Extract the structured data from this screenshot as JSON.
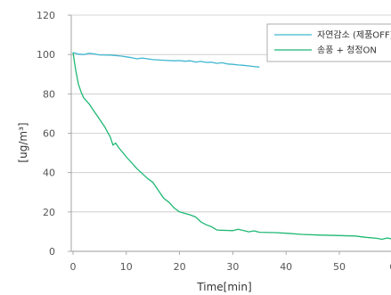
{
  "chart_data": {
    "type": "line",
    "xlabel": "Time[min]",
    "ylabel": "[ug/m³]",
    "xlim": [
      -5,
      60
    ],
    "ylim": [
      0,
      120
    ],
    "x_ticks": [
      "0",
      "10",
      "20",
      "30",
      "40",
      "50",
      "6"
    ],
    "y_ticks": [
      "0",
      "20",
      "40",
      "60",
      "80",
      "100",
      "120"
    ],
    "grid": "horizontal",
    "legend_position": "top-right",
    "series": [
      {
        "name": "자연감소 (제품OFF)",
        "color": "#3fb6d0",
        "points": [
          [
            0,
            101
          ],
          [
            1,
            100.2
          ],
          [
            2,
            100
          ],
          [
            3,
            100.6
          ],
          [
            4,
            100.3
          ],
          [
            5,
            99.8
          ],
          [
            7,
            99.7
          ],
          [
            9,
            99.2
          ],
          [
            10,
            98.8
          ],
          [
            11,
            98.4
          ],
          [
            12,
            97.8
          ],
          [
            13,
            98.2
          ],
          [
            15,
            97.4
          ],
          [
            17,
            97.1
          ],
          [
            19,
            96.8
          ],
          [
            20,
            96.9
          ],
          [
            21,
            96.6
          ],
          [
            22,
            96.8
          ],
          [
            23,
            96.2
          ],
          [
            24,
            96.5
          ],
          [
            25,
            96.0
          ],
          [
            26,
            96.1
          ],
          [
            27,
            95.5
          ],
          [
            28,
            95.8
          ],
          [
            29,
            95.2
          ],
          [
            30,
            95.0
          ],
          [
            31,
            94.7
          ],
          [
            32,
            94.5
          ],
          [
            33,
            94.2
          ],
          [
            34,
            93.9
          ],
          [
            35,
            93.6
          ]
        ]
      },
      {
        "name": "송풍 + 청정ON",
        "color": "#1eb873",
        "points": [
          [
            0,
            101
          ],
          [
            0.5,
            92
          ],
          [
            1,
            85
          ],
          [
            1.5,
            81
          ],
          [
            2,
            78
          ],
          [
            3,
            75
          ],
          [
            4,
            71
          ],
          [
            5,
            67
          ],
          [
            6,
            63
          ],
          [
            7,
            58
          ],
          [
            7.5,
            54
          ],
          [
            8,
            55
          ],
          [
            8.5,
            53
          ],
          [
            10,
            48
          ],
          [
            12,
            42
          ],
          [
            14,
            37
          ],
          [
            15,
            35
          ],
          [
            16,
            31
          ],
          [
            17,
            27
          ],
          [
            18,
            25
          ],
          [
            19,
            22
          ],
          [
            20,
            20
          ],
          [
            22,
            18.5
          ],
          [
            23,
            17.5
          ],
          [
            24,
            15
          ],
          [
            25,
            13.5
          ],
          [
            26,
            12.5
          ],
          [
            27,
            10.8
          ],
          [
            30,
            10.5
          ],
          [
            31,
            11.2
          ],
          [
            32,
            10.6
          ],
          [
            33,
            9.9
          ],
          [
            34,
            10.4
          ],
          [
            35,
            9.7
          ],
          [
            38,
            9.5
          ],
          [
            40,
            9.2
          ],
          [
            43,
            8.6
          ],
          [
            46,
            8.3
          ],
          [
            50,
            8.0
          ],
          [
            53,
            7.8
          ],
          [
            55,
            7.1
          ],
          [
            57,
            6.6
          ],
          [
            58,
            6.1
          ],
          [
            59,
            6.8
          ],
          [
            60,
            6.2
          ]
        ]
      }
    ]
  }
}
